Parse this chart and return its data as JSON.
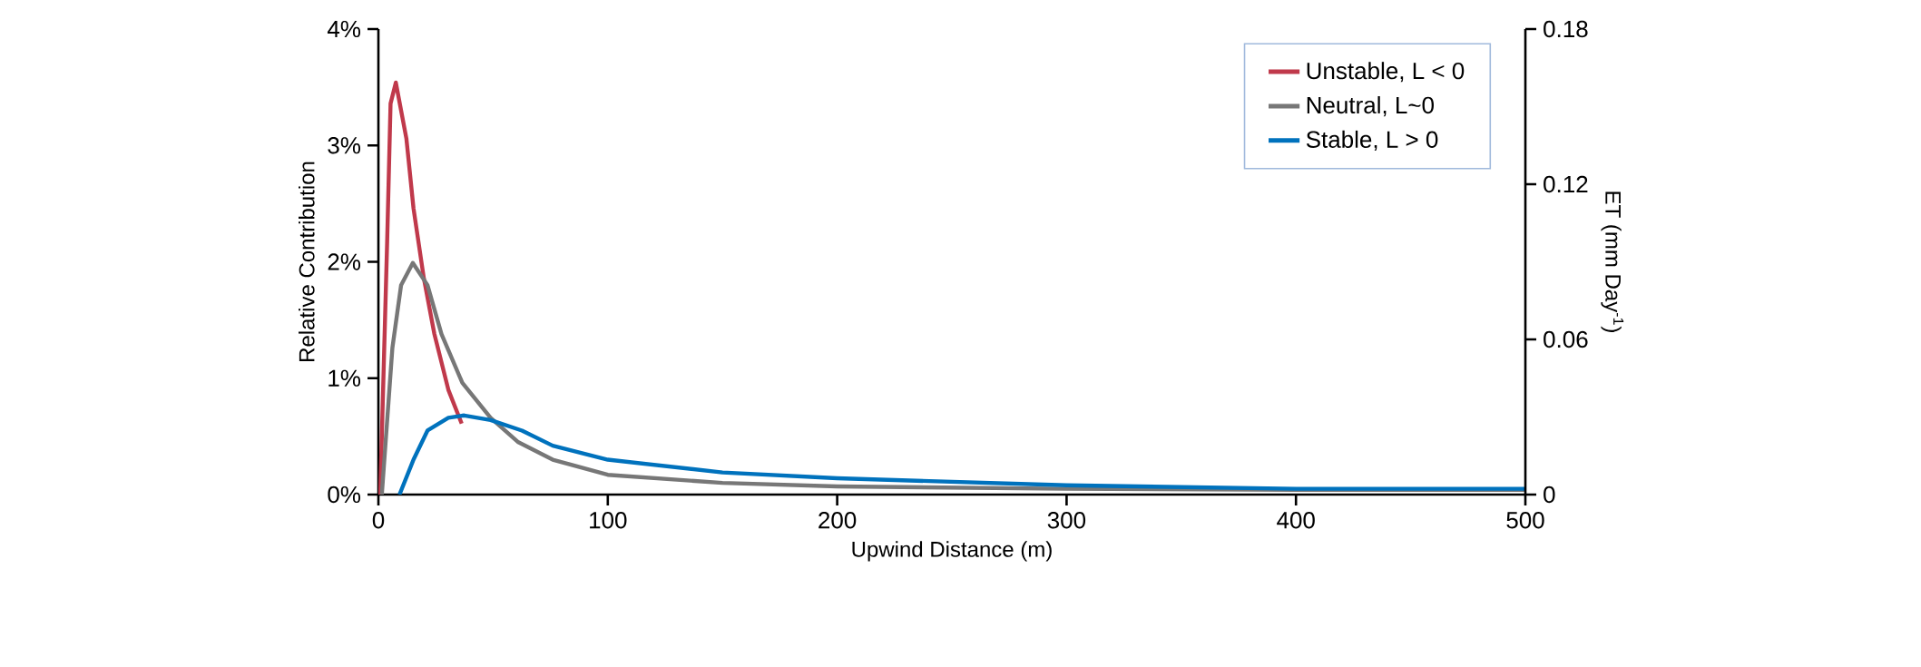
{
  "chart_data": {
    "type": "line",
    "xlabel": "Upwind Distance (m)",
    "ylabel": "Relative Contribution",
    "y2label": "ET (mm Day$^{-1}$)",
    "xlim": [
      0,
      500
    ],
    "xticks": [
      0,
      100,
      200,
      300,
      400,
      500
    ],
    "ylim": [
      0,
      4
    ],
    "yticks": [
      {
        "value": 0,
        "label": "0%"
      },
      {
        "value": 1,
        "label": "1%"
      },
      {
        "value": 2,
        "label": "2%"
      },
      {
        "value": 3,
        "label": "3%"
      },
      {
        "value": 4,
        "label": "4%"
      }
    ],
    "y2lim": [
      0,
      0.18
    ],
    "y2ticks": [
      0,
      0.06,
      0.12,
      0.18
    ],
    "legend": "top right",
    "grid": false,
    "marker": "none",
    "line_style": "solid",
    "series": [
      {
        "name": "Unstable, L < 0",
        "color": "#c0394b",
        "x": [
          0.8,
          3.8,
          5.3,
          7.6,
          12.2,
          15.3,
          19.8,
          24.4,
          30.5,
          36.3
        ],
        "values": [
          0,
          2.16,
          3.36,
          3.54,
          3.06,
          2.46,
          1.86,
          1.38,
          0.9,
          0.61
        ]
      },
      {
        "name": "Neutral, L~0",
        "color": "#777777",
        "x": [
          1.5,
          6.1,
          9.9,
          15,
          21.4,
          27.5,
          36.6,
          48.9,
          61,
          76,
          100,
          150,
          200,
          300,
          400,
          500
        ],
        "values": [
          0,
          1.26,
          1.8,
          1.99,
          1.8,
          1.38,
          0.96,
          0.66,
          0.45,
          0.3,
          0.17,
          0.1,
          0.07,
          0.05,
          0.04,
          0.04
        ]
      },
      {
        "name": "Stable, L > 0",
        "color": "#0072bd",
        "x": [
          9.2,
          15.3,
          21.4,
          30.5,
          37.4,
          48.9,
          62.6,
          76,
          100,
          150,
          200,
          300,
          400,
          500
        ],
        "values": [
          0,
          0.3,
          0.55,
          0.66,
          0.68,
          0.64,
          0.55,
          0.42,
          0.3,
          0.19,
          0.14,
          0.08,
          0.05,
          0.05
        ]
      }
    ]
  }
}
